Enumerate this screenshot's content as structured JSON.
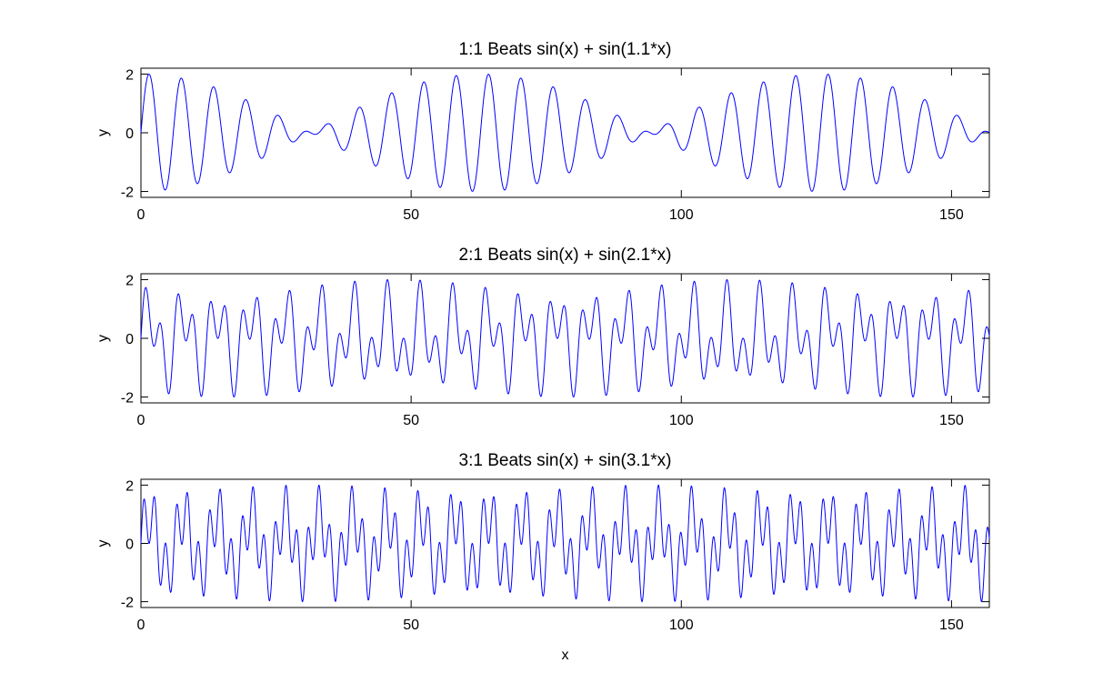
{
  "chart_data": [
    {
      "type": "line",
      "title": "1:1 Beats    sin(x) + sin(1.1*x)",
      "xlabel": "",
      "ylabel": "y",
      "xlim": [
        0,
        157
      ],
      "ylim": [
        -2.2,
        2.2
      ],
      "xticks": [
        0,
        50,
        100,
        150
      ],
      "yticks": [
        -2,
        0,
        2
      ],
      "grid": false,
      "series": [
        {
          "function": "sin(x) + sin(1.1*x)",
          "a": 1.1,
          "x_start": 0,
          "x_end": 157,
          "color": "#0000ff"
        }
      ]
    },
    {
      "type": "line",
      "title": "2:1 Beats    sin(x) + sin(2.1*x)",
      "xlabel": "",
      "ylabel": "y",
      "xlim": [
        0,
        157
      ],
      "ylim": [
        -2.2,
        2.2
      ],
      "xticks": [
        0,
        50,
        100,
        150
      ],
      "yticks": [
        -2,
        0,
        2
      ],
      "grid": false,
      "series": [
        {
          "function": "sin(x) + sin(2.1*x)",
          "a": 2.1,
          "x_start": 0,
          "x_end": 157,
          "color": "#0000ff"
        }
      ]
    },
    {
      "type": "line",
      "title": "3:1 Beats    sin(x) + sin(3.1*x)",
      "xlabel": "x",
      "ylabel": "y",
      "xlim": [
        0,
        157
      ],
      "ylim": [
        -2.2,
        2.2
      ],
      "xticks": [
        0,
        50,
        100,
        150
      ],
      "yticks": [
        -2,
        0,
        2
      ],
      "grid": false,
      "series": [
        {
          "function": "sin(x) + sin(3.1*x)",
          "a": 3.1,
          "x_start": 0,
          "x_end": 157,
          "color": "#0000ff"
        }
      ]
    }
  ]
}
